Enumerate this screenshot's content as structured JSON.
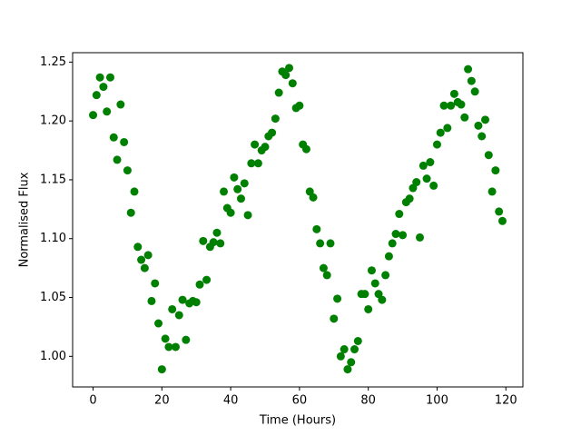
{
  "chart_data": {
    "type": "scatter",
    "x_label": "Time (Hours)",
    "y_label": "Normalised Flux",
    "color": "#008000",
    "x": [
      0,
      1,
      2,
      3,
      4,
      5,
      6,
      7,
      8,
      9,
      10,
      11,
      12,
      13,
      14,
      15,
      16,
      17,
      18,
      19,
      20,
      21,
      22,
      23,
      24,
      25,
      26,
      27,
      28,
      29,
      30,
      31,
      32,
      33,
      34,
      35,
      36,
      37,
      38,
      39,
      40,
      41,
      42,
      43,
      44,
      45,
      46,
      47,
      48,
      49,
      50,
      51,
      52,
      53,
      54,
      55,
      56,
      57,
      58,
      59,
      60,
      61,
      62,
      63,
      64,
      65,
      66,
      67,
      68,
      69,
      70,
      71,
      72,
      73,
      74,
      75,
      76,
      77,
      78,
      79,
      80,
      81,
      82,
      83,
      84,
      85,
      86,
      87,
      88,
      89,
      90,
      91,
      92,
      93,
      94,
      95,
      96,
      97,
      98,
      99,
      100,
      101,
      102,
      103,
      104,
      105,
      106,
      107,
      108,
      109,
      110,
      111,
      112,
      113,
      114,
      115,
      116,
      117,
      118,
      119
    ],
    "values": [
      1.205,
      1.222,
      1.237,
      1.229,
      1.208,
      1.237,
      1.186,
      1.167,
      1.214,
      1.182,
      1.158,
      1.122,
      1.14,
      1.093,
      1.082,
      1.075,
      1.086,
      1.047,
      1.062,
      1.028,
      0.989,
      1.015,
      1.008,
      1.04,
      1.008,
      1.035,
      1.048,
      1.014,
      1.045,
      1.047,
      1.046,
      1.061,
      1.098,
      1.065,
      1.093,
      1.097,
      1.105,
      1.096,
      1.14,
      1.126,
      1.122,
      1.152,
      1.142,
      1.134,
      1.147,
      1.12,
      1.164,
      1.18,
      1.164,
      1.175,
      1.178,
      1.187,
      1.19,
      1.202,
      1.224,
      1.242,
      1.239,
      1.245,
      1.232,
      1.211,
      1.213,
      1.18,
      1.176,
      1.14,
      1.135,
      1.108,
      1.096,
      1.075,
      1.069,
      1.096,
      1.032,
      1.049,
      1.0,
      1.006,
      0.989,
      0.995,
      1.006,
      1.013,
      1.053,
      1.053,
      1.04,
      1.073,
      1.062,
      1.053,
      1.048,
      1.069,
      1.085,
      1.096,
      1.104,
      1.121,
      1.103,
      1.131,
      1.134,
      1.143,
      1.148,
      1.101,
      1.162,
      1.151,
      1.165,
      1.145,
      1.18,
      1.19,
      1.213,
      1.194,
      1.213,
      1.223,
      1.216,
      1.214,
      1.203,
      1.244,
      1.234,
      1.225,
      1.196,
      1.187,
      1.201,
      1.171,
      1.14,
      1.158,
      1.123,
      1.115
    ],
    "xlim": [
      -5.95,
      124.95
    ],
    "xticks": [
      0,
      20,
      40,
      60,
      80,
      100,
      120
    ],
    "ylim": [
      0.974,
      1.258
    ],
    "yticks": [
      {
        "value": 1,
        "label": "1.00"
      },
      1.05,
      {
        "value": 1.1,
        "label": "1.10"
      },
      1.15,
      {
        "value": 1.2,
        "label": "1.20"
      },
      1.25
    ]
  }
}
